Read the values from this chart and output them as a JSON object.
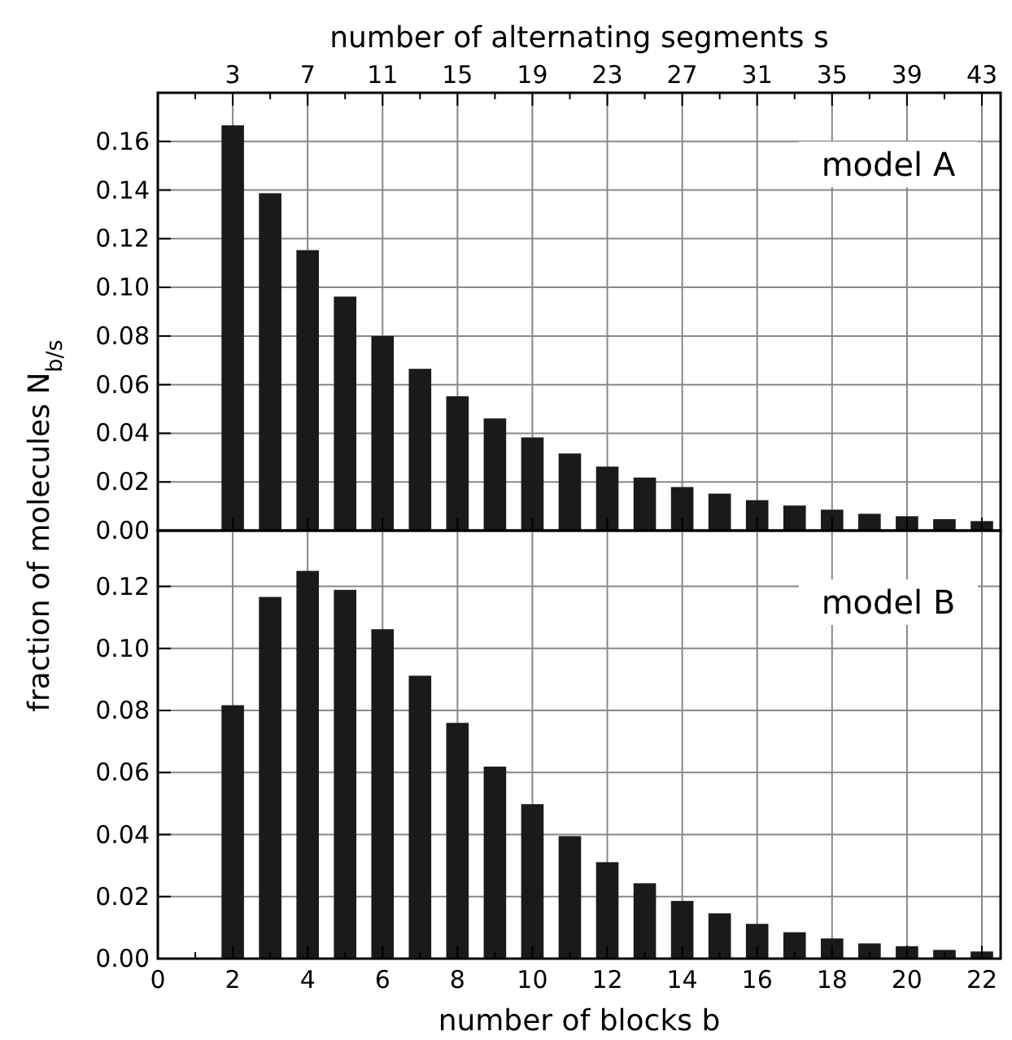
{
  "chart_data": [
    {
      "type": "bar",
      "x2label": "number of alternating segments s",
      "ylabel": "fraction of molecules N$_{b/s}$",
      "annotations": [
        "model A"
      ],
      "x": [
        2,
        3,
        4,
        5,
        6,
        7,
        8,
        9,
        10,
        11,
        12,
        13,
        14,
        15,
        16,
        17,
        18,
        19,
        20,
        21,
        22
      ],
      "values": [
        0.1666,
        0.1387,
        0.1153,
        0.0962,
        0.08,
        0.0665,
        0.0552,
        0.0461,
        0.0383,
        0.0317,
        0.0263,
        0.0218,
        0.0179,
        0.0152,
        0.0125,
        0.0103,
        0.0086,
        0.0069,
        0.0059,
        0.0047,
        0.0039
      ],
      "color": "#1a1a1a",
      "xlim": [
        0,
        22.5
      ],
      "xticks": [
        0,
        2,
        4,
        6,
        8,
        10,
        12,
        14,
        16,
        18,
        20,
        22
      ],
      "x2lim": [
        -1,
        44
      ],
      "x2ticks": [
        {
          "value": 1,
          "label": null
        },
        3,
        {
          "value": 5,
          "label": null
        },
        7,
        {
          "value": 9,
          "label": null
        },
        11,
        {
          "value": 13,
          "label": null
        },
        15,
        {
          "value": 17,
          "label": null
        },
        19,
        {
          "value": 21,
          "label": null
        },
        23,
        {
          "value": 25,
          "label": null
        },
        27,
        {
          "value": 29,
          "label": null
        },
        31,
        {
          "value": 33,
          "label": null
        },
        35,
        {
          "value": 37,
          "label": null
        },
        39,
        {
          "value": 41,
          "label": null
        },
        43
      ],
      "ylim": [
        0,
        0.18
      ],
      "yticks": [
        {
          "value": 0,
          "label": "0.00"
        },
        {
          "value": 0.02,
          "label": "0.02"
        },
        {
          "value": 0.04,
          "label": "0.04"
        },
        {
          "value": 0.06,
          "label": "0.06"
        },
        {
          "value": 0.08,
          "label": "0.08"
        },
        {
          "value": 0.1,
          "label": "0.10"
        },
        {
          "value": 0.12,
          "label": "0.12"
        },
        {
          "value": 0.14,
          "label": "0.14"
        },
        {
          "value": 0.16,
          "label": "0.16"
        }
      ],
      "tick_labels": "y",
      "grid": true
    },
    {
      "type": "bar",
      "xlabel": "number of blocks b",
      "annotations": [
        "model B"
      ],
      "x": [
        2,
        3,
        4,
        5,
        6,
        7,
        8,
        9,
        10,
        11,
        12,
        13,
        14,
        15,
        16,
        17,
        18,
        19,
        20,
        21,
        22
      ],
      "values": [
        0.0817,
        0.1166,
        0.125,
        0.1189,
        0.1062,
        0.0912,
        0.076,
        0.0619,
        0.0498,
        0.0395,
        0.0311,
        0.0243,
        0.0186,
        0.0146,
        0.0112,
        0.0085,
        0.0065,
        0.0049,
        0.004,
        0.0028,
        0.0023
      ],
      "color": "#1a1a1a",
      "xlim": [
        0,
        22.5
      ],
      "xticks": [
        0,
        {
          "value": 1,
          "label": null
        },
        2,
        {
          "value": 3,
          "label": null
        },
        4,
        {
          "value": 5,
          "label": null
        },
        6,
        {
          "value": 7,
          "label": null
        },
        8,
        {
          "value": 9,
          "label": null
        },
        10,
        {
          "value": 11,
          "label": null
        },
        12,
        {
          "value": 13,
          "label": null
        },
        14,
        {
          "value": 15,
          "label": null
        },
        16,
        {
          "value": 17,
          "label": null
        },
        18,
        {
          "value": 19,
          "label": null
        },
        20,
        {
          "value": 21,
          "label": null
        },
        22
      ],
      "ylim": [
        0,
        0.138
      ],
      "yticks": [
        {
          "value": 0,
          "label": "0.00"
        },
        {
          "value": 0.02,
          "label": "0.02"
        },
        {
          "value": 0.04,
          "label": "0.04"
        },
        {
          "value": 0.06,
          "label": "0.06"
        },
        {
          "value": 0.08,
          "label": "0.08"
        },
        {
          "value": 0.1,
          "label": "0.10"
        },
        {
          "value": 0.12,
          "label": "0.12"
        }
      ],
      "grid": true
    }
  ]
}
